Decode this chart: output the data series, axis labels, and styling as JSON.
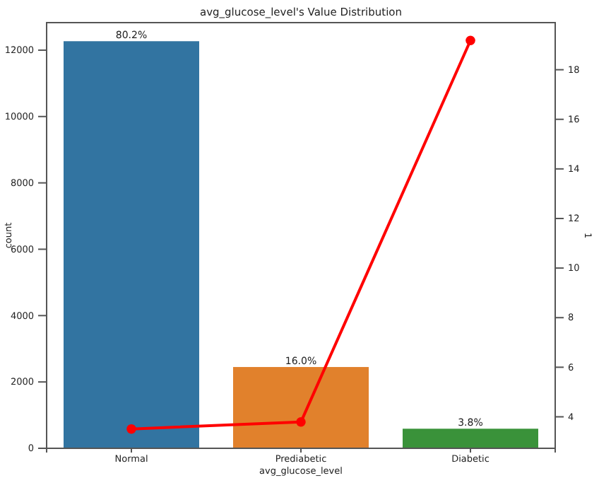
{
  "chart_data": {
    "type": "bar",
    "title": "avg_glucose_level's Value Distribution",
    "xlabel": "avg_glucose_level",
    "ylabel": "count",
    "y2label": "1",
    "categories": [
      "Normal",
      "Prediabetic",
      "Diabetic"
    ],
    "series": [
      {
        "colors": [
          "#3274a1",
          "#e1812c",
          "#3a923a"
        ],
        "values": [
          12270,
          2450,
          590
        ]
      },
      {
        "type": "line",
        "axis": "y2",
        "color": "#ff0000",
        "values": [
          3.51,
          3.79,
          19.18
        ],
        "marker": "circle"
      }
    ],
    "annotations": [
      {
        "text": "80.2%",
        "x": "Normal",
        "y": 12270
      },
      {
        "text": "16.0%",
        "x": "Prediabetic",
        "y": 2450
      },
      {
        "text": "3.8%",
        "x": "Diabetic",
        "y": 590
      }
    ],
    "ylim": [
      0,
      12830
    ],
    "yticks": [
      0,
      2000,
      4000,
      6000,
      8000,
      10000,
      12000
    ],
    "y2lim": [
      2.73,
      19.9
    ],
    "y2ticks": [
      4,
      6,
      8,
      10,
      12,
      14,
      16,
      18
    ]
  }
}
